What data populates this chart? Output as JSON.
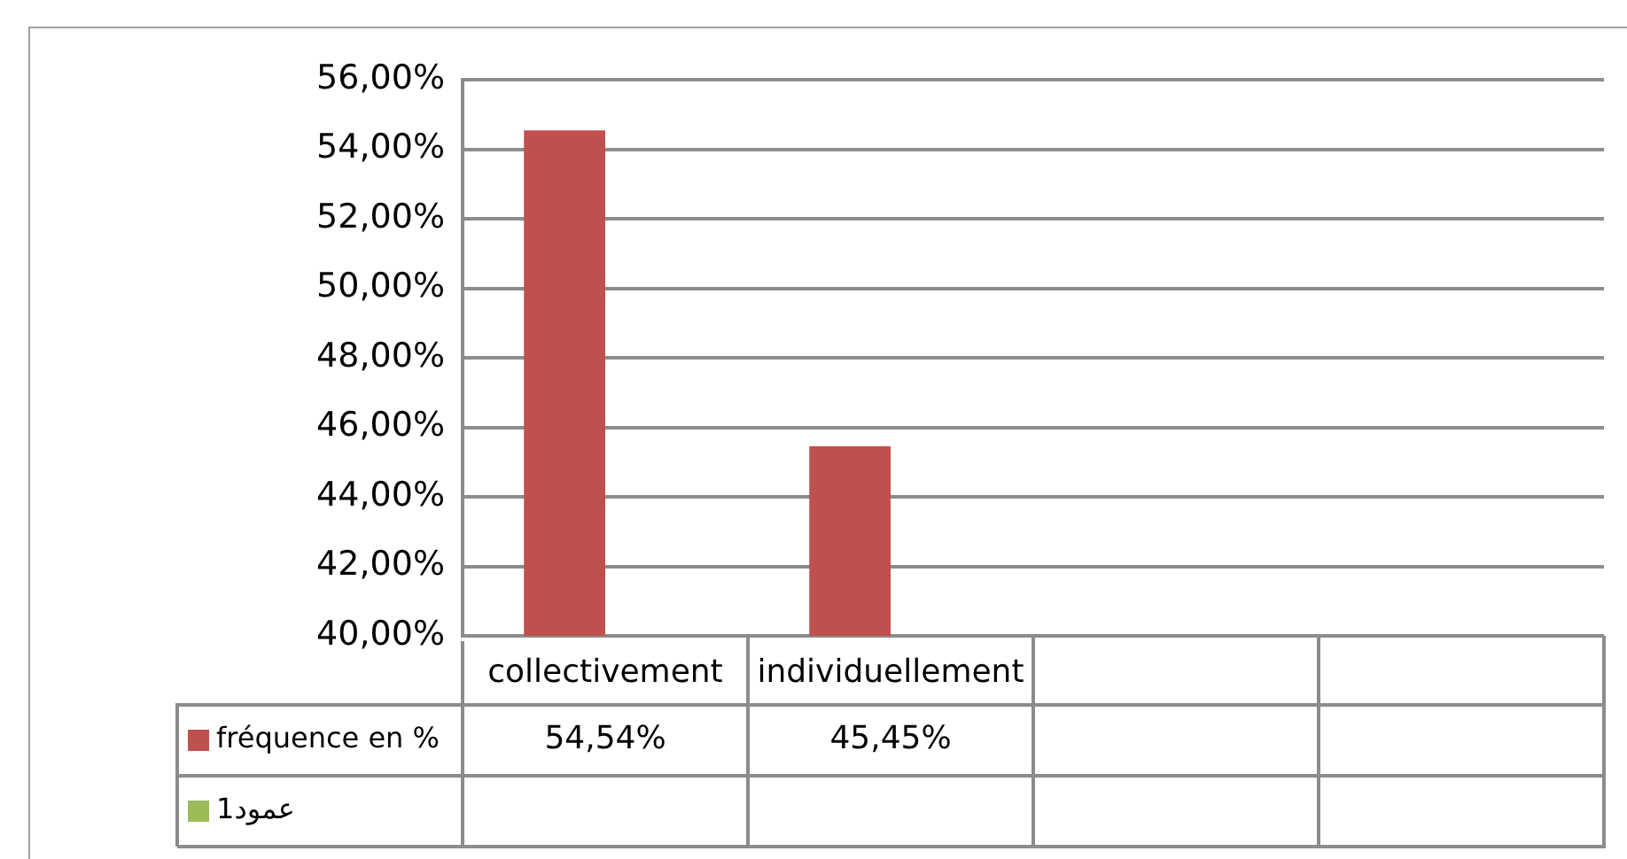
{
  "chart_data": {
    "type": "bar",
    "categories": [
      "collectivement",
      "individuellement",
      null,
      null
    ],
    "series": [
      {
        "name": "fréquence en %",
        "color": "#c0504d",
        "values": [
          54.54,
          45.45,
          null,
          null
        ],
        "value_labels": [
          "54,54%",
          "45,45%",
          null,
          null
        ]
      },
      {
        "name": "عمود1",
        "color": "#9bbb59",
        "values": [
          null,
          null,
          null,
          null
        ]
      }
    ],
    "ylim": [
      40,
      56
    ],
    "yticks": [
      {
        "value": 40,
        "label": "40,00%"
      },
      {
        "value": 42,
        "label": "42,00%"
      },
      {
        "value": 44,
        "label": "44,00%"
      },
      {
        "value": 46,
        "label": "46,00%"
      },
      {
        "value": 48,
        "label": "48,00%"
      },
      {
        "value": 50,
        "label": "50,00%"
      },
      {
        "value": 52,
        "label": "52,00%"
      },
      {
        "value": 54,
        "label": "54,00%"
      },
      {
        "value": 56,
        "label": "56,00%"
      }
    ],
    "grid": "y",
    "legend": "bottom"
  }
}
